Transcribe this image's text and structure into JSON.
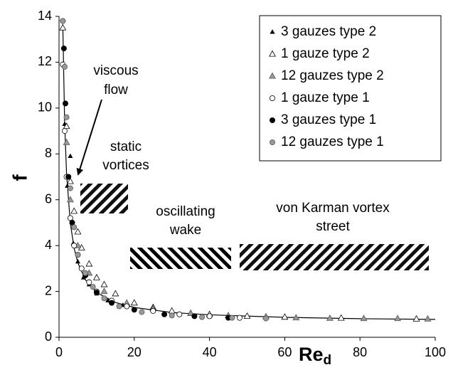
{
  "chart_data": {
    "type": "scatter",
    "y_label": "f",
    "x_label": "Re",
    "x_label_sub": "d",
    "xlim": [
      0,
      100
    ],
    "xticks": [
      0,
      20,
      40,
      60,
      80,
      100
    ],
    "ylim": [
      0,
      14
    ],
    "yticks": [
      0,
      2,
      4,
      6,
      8,
      10,
      12,
      14
    ],
    "legend": "upper right",
    "annotations": {
      "viscous": [
        "viscous",
        "flow"
      ],
      "static": [
        "static",
        "vortices"
      ],
      "oscillating": [
        "oscillating",
        "wake"
      ],
      "karman": [
        "von Karman vortex",
        "street"
      ]
    },
    "series": [
      {
        "name": "3 gauzes type 2",
        "marker": "small-triangle",
        "color": "#000000",
        "stroke": "#000000",
        "x": [
          1.5,
          2.2,
          3,
          3.8,
          5,
          6.5,
          8,
          10,
          13,
          17
        ],
        "values": [
          9.3,
          6.6,
          7.9,
          4.1,
          3.3,
          2.6,
          2.3,
          1.9,
          1.6,
          1.4
        ]
      },
      {
        "name": "1 gauze type 2",
        "marker": "triangle",
        "color": "#ffffff",
        "stroke": "#000000",
        "x": [
          1,
          2,
          3,
          4,
          5,
          6,
          8,
          10,
          12,
          15,
          20,
          25,
          30,
          35,
          40,
          50,
          60,
          75,
          95
        ],
        "values": [
          13.5,
          9.2,
          6.8,
          5.5,
          4.6,
          3.9,
          3.2,
          2.6,
          2.3,
          1.9,
          1.5,
          1.3,
          1.15,
          1.05,
          1.0,
          0.92,
          0.88,
          0.84,
          0.8
        ]
      },
      {
        "name": "12 gauzes type 2",
        "marker": "triangle",
        "color": "#999999",
        "stroke": "#555555",
        "x": [
          2,
          3,
          5,
          8,
          12,
          18,
          25,
          35,
          45,
          55,
          63,
          72,
          81,
          90,
          98
        ],
        "values": [
          8.5,
          6.0,
          4.0,
          2.8,
          2.0,
          1.5,
          1.25,
          1.05,
          0.95,
          0.9,
          0.85,
          0.83,
          0.82,
          0.82,
          0.8
        ]
      },
      {
        "name": "1 gauze type 1",
        "marker": "circle",
        "color": "#ffffff",
        "stroke": "#000000",
        "x": [
          1,
          1.5,
          2,
          3,
          4,
          6,
          8,
          10,
          14,
          18,
          25,
          32,
          40,
          48
        ],
        "values": [
          11.9,
          9,
          7,
          5.2,
          4,
          3,
          2.4,
          2.0,
          1.6,
          1.35,
          1.15,
          1.0,
          0.92,
          0.85
        ]
      },
      {
        "name": "3 gauzes type 1",
        "marker": "circle",
        "color": "#000000",
        "stroke": "#000000",
        "x": [
          1,
          1.3,
          1.7,
          2.5,
          3.5,
          5,
          7,
          10,
          14,
          20,
          28,
          36,
          45
        ],
        "values": [
          13.8,
          12.6,
          10.2,
          7.0,
          5.0,
          3.6,
          2.7,
          1.95,
          1.5,
          1.2,
          1.0,
          0.92,
          0.85
        ]
      },
      {
        "name": "12 gauzes type 1",
        "marker": "circle",
        "color": "#999999",
        "stroke": "#555555",
        "x": [
          1,
          1.5,
          2,
          3,
          4,
          5,
          7,
          9,
          12,
          16,
          22,
          30,
          38,
          46,
          55
        ],
        "values": [
          13.8,
          11.8,
          9.6,
          6.5,
          4.8,
          3.6,
          2.8,
          2.2,
          1.7,
          1.35,
          1.1,
          0.95,
          0.88,
          0.85,
          0.82
        ]
      }
    ],
    "fit": {
      "color": "#000000",
      "x": [
        1,
        1.5,
        2,
        3,
        4,
        5,
        7,
        10,
        15,
        20,
        30,
        40,
        60,
        80,
        100
      ],
      "values": [
        13.65,
        9.32,
        7.15,
        4.98,
        3.9,
        3.25,
        2.51,
        1.95,
        1.52,
        1.3,
        1.08,
        0.98,
        0.87,
        0.81,
        0.78
      ]
    }
  }
}
